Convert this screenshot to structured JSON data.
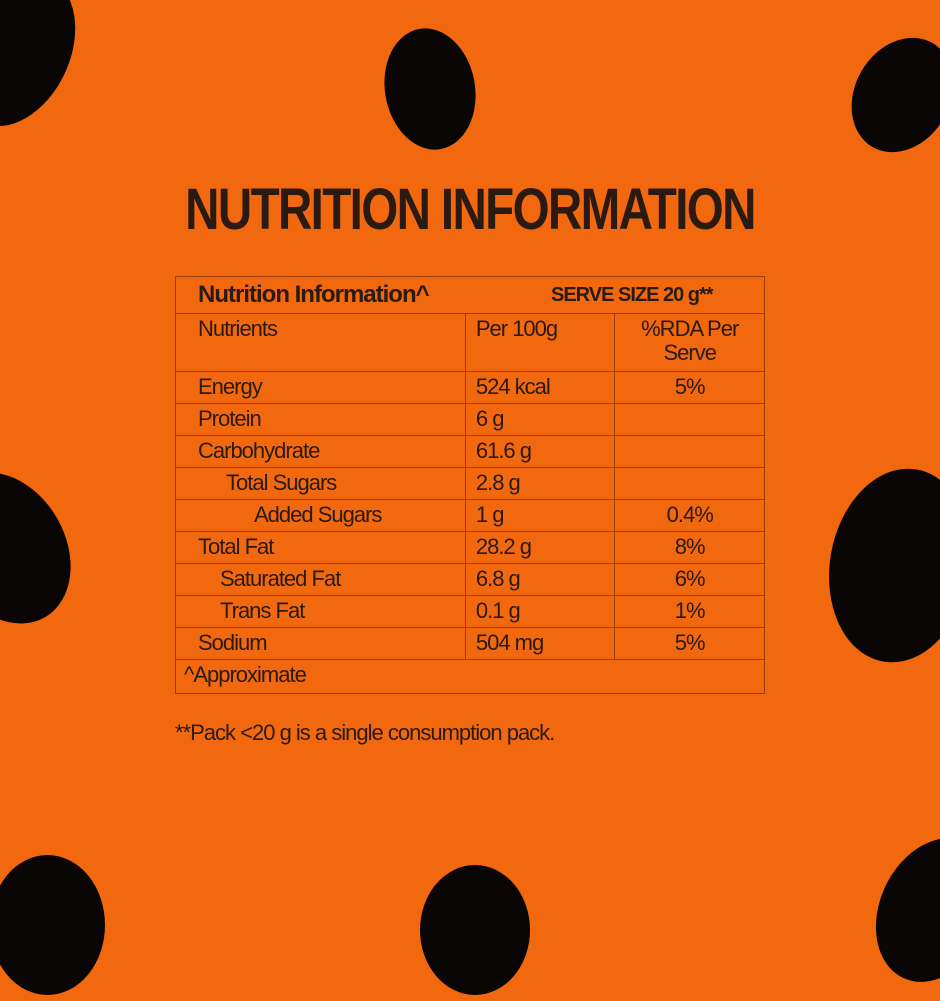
{
  "title": "NUTRITION INFORMATION",
  "table": {
    "heading": "Nutrition Information^",
    "serve_size": "SERVE SIZE 20 g**",
    "columns": [
      "Nutrients",
      "Per 100g",
      "%RDA Per Serve"
    ],
    "rows": [
      {
        "name": "Energy",
        "per100": "524 kcal",
        "rda": "5%"
      },
      {
        "name": "Protein",
        "per100": "6 g",
        "rda": ""
      },
      {
        "name": "Carbohydrate",
        "per100": "61.6 g",
        "rda": ""
      },
      {
        "name": "Total Sugars",
        "per100": "2.8 g",
        "rda": ""
      },
      {
        "name": "Added Sugars",
        "per100": "1 g",
        "rda": "0.4%"
      },
      {
        "name": "Total Fat",
        "per100": "28.2 g",
        "rda": "8%"
      },
      {
        "name": "Saturated Fat",
        "per100": "6.8 g",
        "rda": "6%"
      },
      {
        "name": "Trans Fat",
        "per100": "0.1 g",
        "rda": "1%"
      },
      {
        "name": "Sodium",
        "per100": "504 mg",
        "rda": "5%"
      }
    ],
    "note": "^Approximate"
  },
  "footnote": "**Pack <20 g is a single consumption pack.",
  "colors": {
    "background": "#f1680f",
    "text": "#2a1a12",
    "blobs": "#0a0606"
  }
}
